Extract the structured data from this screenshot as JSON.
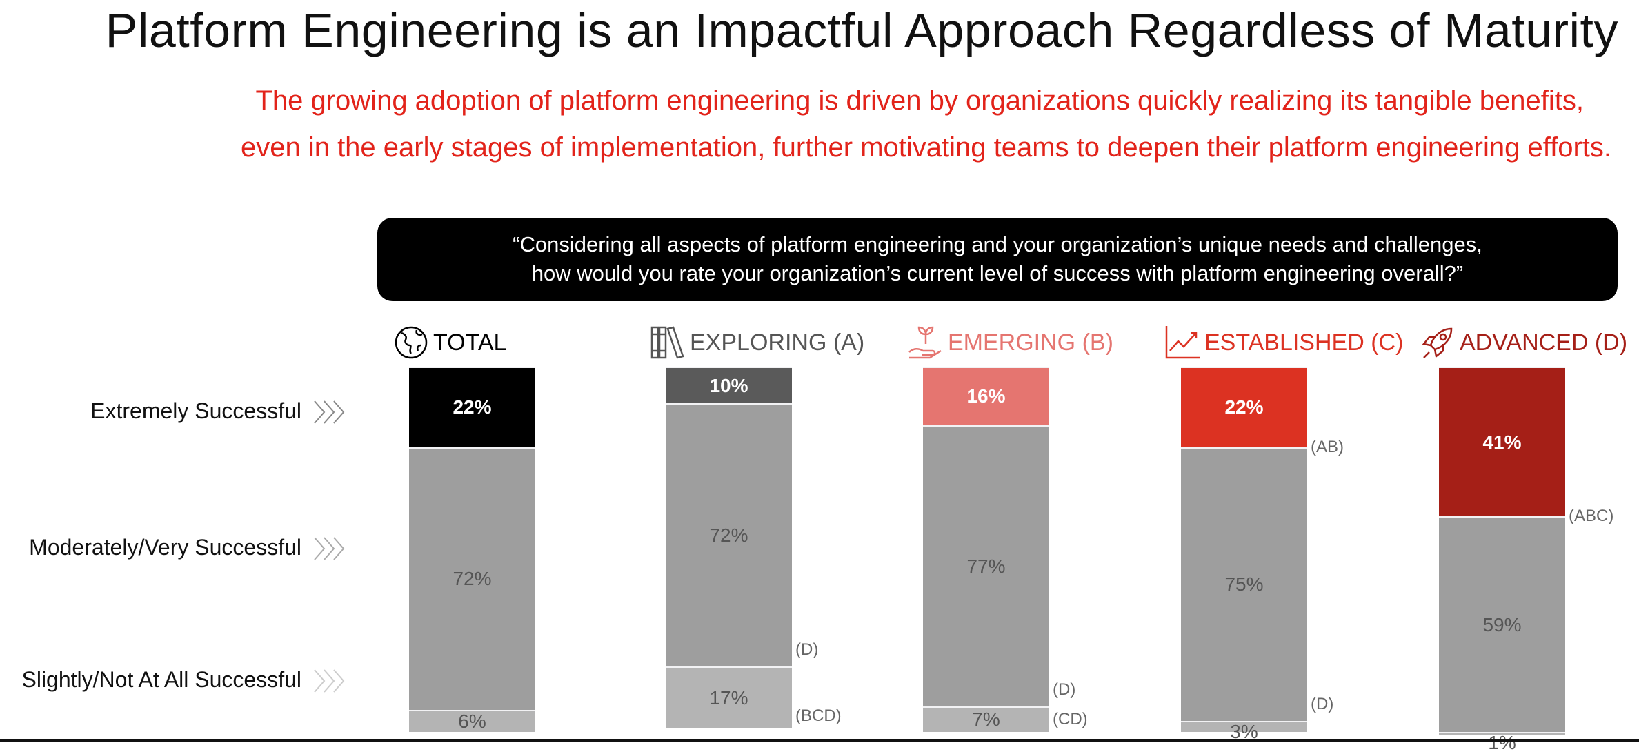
{
  "title": "Platform Engineering is an Impactful Approach Regardless of Maturity",
  "subtitle": [
    "The growing adoption of platform engineering is driven by organizations quickly realizing its tangible benefits,",
    "even in the early stages of implementation, further motivating teams to deepen their platform engineering efforts."
  ],
  "question": [
    "“Considering all aspects of platform engineering and your organization’s unique needs and challenges,",
    "how would you rate your organization’s current level of success with platform engineering overall?”"
  ],
  "chart_data": {
    "type": "bar",
    "stacked": true,
    "categories": [
      "TOTAL",
      "EXPLORING (A)",
      "EMERGING (B)",
      "ESTABLISHED (C)",
      "ADVANCED (D)"
    ],
    "category_icons": [
      "globe-icon",
      "books-icon",
      "sprout-hand-icon",
      "trend-chart-icon",
      "rocket-icon"
    ],
    "category_colors": [
      "#000000",
      "#555555",
      "#e57570",
      "#dc3222",
      "#a51f17"
    ],
    "series": [
      {
        "name": "Extremely Successful",
        "values": [
          22,
          10,
          16,
          22,
          41
        ],
        "colors": [
          "#000000",
          "#5a5a5a",
          "#e57570",
          "#dc3222",
          "#a51f17"
        ]
      },
      {
        "name": "Moderately/Very Successful",
        "values": [
          72,
          72,
          77,
          75,
          59
        ],
        "color": "#9e9e9e"
      },
      {
        "name": "Slightly/Not At All Successful",
        "values": [
          6,
          17,
          7,
          3,
          1
        ],
        "color": "#b4b4b4"
      }
    ],
    "labels": [
      [
        "22%",
        "10%",
        "16%",
        "22%",
        "41%"
      ],
      [
        "72%",
        "72%",
        "77%",
        "75%",
        "59%"
      ],
      [
        "6%",
        "17%",
        "7%",
        "3%",
        "1%"
      ]
    ],
    "significance": [
      {
        "category": 3,
        "series": 0,
        "text": "(AB)"
      },
      {
        "category": 4,
        "series": 0,
        "text": "(ABC)"
      },
      {
        "category": 1,
        "series": 1,
        "text": "(D)"
      },
      {
        "category": 1,
        "series": 2,
        "text": "(BCD)"
      },
      {
        "category": 2,
        "series": 1,
        "text": "(D)"
      },
      {
        "category": 2,
        "series": 2,
        "text": "(CD)"
      },
      {
        "category": 3,
        "series": 1,
        "text": "(D)"
      }
    ],
    "ylim": [
      0,
      100
    ],
    "grid": false,
    "legend": "left"
  }
}
